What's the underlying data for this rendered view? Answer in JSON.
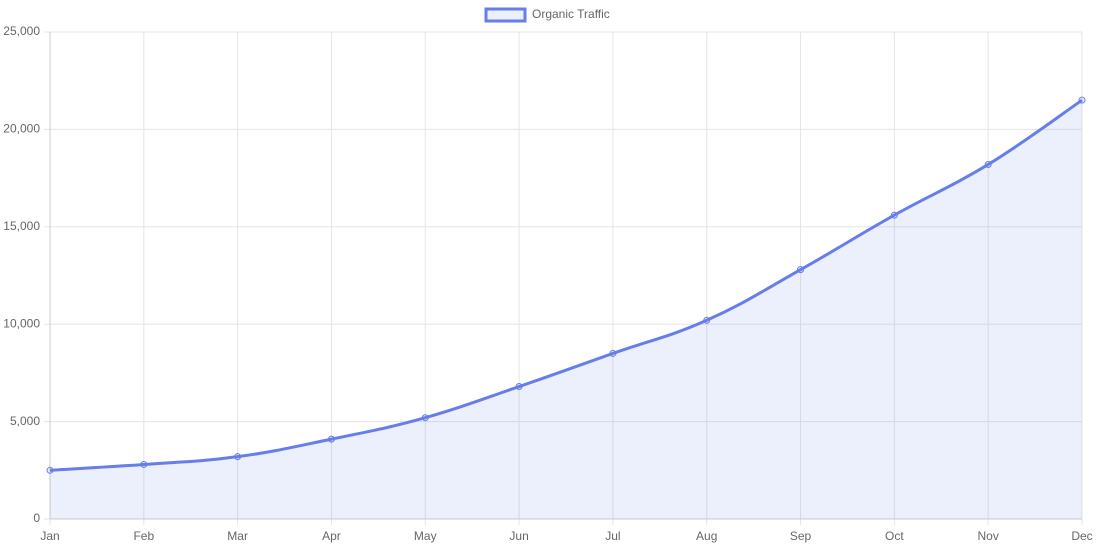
{
  "chart_data": {
    "type": "line",
    "categories": [
      "Jan",
      "Feb",
      "Mar",
      "Apr",
      "May",
      "Jun",
      "Jul",
      "Aug",
      "Sep",
      "Oct",
      "Nov",
      "Dec"
    ],
    "series": [
      {
        "name": "Organic Traffic",
        "color": "#667eea",
        "fill": "rgba(102,126,234,0.12)",
        "values": [
          2500,
          2800,
          3200,
          4100,
          5200,
          6800,
          8500,
          10200,
          12800,
          15600,
          18200,
          21500
        ]
      }
    ],
    "ylim": [
      0,
      25000
    ],
    "yticks": [
      0,
      {
        "value": 5000,
        "label": "5,000"
      },
      {
        "value": 10000,
        "label": "10,000"
      },
      {
        "value": 15000,
        "label": "15,000"
      },
      {
        "value": 20000,
        "label": "20,000"
      },
      {
        "value": 25000,
        "label": "25,000"
      }
    ],
    "grid": true,
    "legend": "top"
  }
}
